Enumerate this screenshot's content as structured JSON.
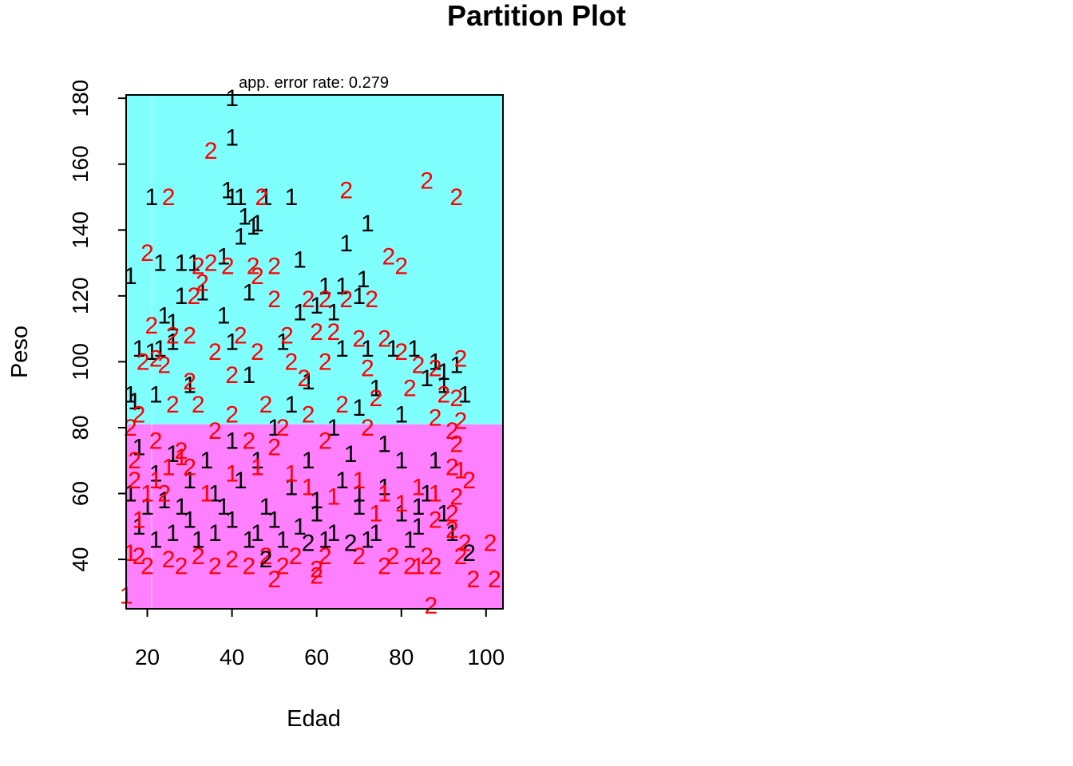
{
  "chart_data": {
    "type": "scatter",
    "title": "Partition Plot",
    "subtitle": "app. error rate: 0.279",
    "xlabel": "Edad",
    "ylabel": "Peso",
    "xlim": [
      15,
      104
    ],
    "ylim": [
      25,
      181
    ],
    "xticks": [
      20,
      40,
      60,
      80,
      100
    ],
    "yticks": [
      40,
      60,
      80,
      100,
      120,
      140,
      160,
      180
    ],
    "grid": false,
    "legend": "none",
    "regions": [
      {
        "class": "1",
        "color": "#80FFFF",
        "x": [
          15,
          104
        ],
        "y": [
          81,
          181
        ],
        "x_extent_for_y_81_to_90": [
          15,
          95
        ]
      },
      {
        "class": "2",
        "color": "#FF80FF",
        "x": [
          15,
          104
        ],
        "y": [
          25,
          81
        ]
      }
    ],
    "point_colors": {
      "correct": "#000000",
      "misclassified": "#FF0000"
    },
    "series": [
      {
        "name": "1",
        "points": [
          [
            40,
            180
          ],
          [
            40,
            168
          ],
          [
            39,
            152
          ],
          [
            40,
            150
          ],
          [
            42,
            150
          ],
          [
            48,
            150
          ],
          [
            54,
            150
          ],
          [
            21,
            150
          ],
          [
            43,
            144
          ],
          [
            45,
            141
          ],
          [
            46,
            142
          ],
          [
            42,
            138
          ],
          [
            72,
            142
          ],
          [
            67,
            136
          ],
          [
            56,
            131
          ],
          [
            71,
            125
          ],
          [
            23,
            130
          ],
          [
            28,
            130
          ],
          [
            31,
            130
          ],
          [
            16,
            126
          ],
          [
            38,
            132
          ],
          [
            62,
            123
          ],
          [
            66,
            123
          ],
          [
            28,
            120
          ],
          [
            33,
            121
          ],
          [
            44,
            121
          ],
          [
            70,
            120
          ],
          [
            24,
            114
          ],
          [
            26,
            112
          ],
          [
            38,
            114
          ],
          [
            56,
            115
          ],
          [
            60,
            117
          ],
          [
            64,
            115
          ],
          [
            23,
            104
          ],
          [
            26,
            106
          ],
          [
            40,
            106
          ],
          [
            52,
            106
          ],
          [
            66,
            104
          ],
          [
            72,
            104
          ],
          [
            78,
            104
          ],
          [
            83,
            104
          ],
          [
            18,
            104
          ],
          [
            21,
            103
          ],
          [
            88,
            100
          ],
          [
            93,
            99
          ],
          [
            90,
            97
          ],
          [
            86,
            95
          ],
          [
            90,
            93
          ],
          [
            95,
            90
          ],
          [
            30,
            93
          ],
          [
            44,
            96
          ],
          [
            58,
            94
          ],
          [
            74,
            92
          ],
          [
            16,
            90
          ],
          [
            17,
            88
          ],
          [
            22,
            90
          ],
          [
            54,
            87
          ],
          [
            70,
            86
          ],
          [
            80,
            84
          ],
          [
            50,
            80
          ],
          [
            64,
            80
          ],
          [
            40,
            76
          ],
          [
            76,
            75
          ],
          [
            18,
            74
          ],
          [
            26,
            72
          ],
          [
            34,
            70
          ],
          [
            46,
            70
          ],
          [
            58,
            70
          ],
          [
            68,
            72
          ],
          [
            80,
            70
          ],
          [
            88,
            70
          ],
          [
            22,
            66
          ],
          [
            30,
            64
          ],
          [
            42,
            64
          ],
          [
            54,
            62
          ],
          [
            66,
            64
          ],
          [
            76,
            62
          ],
          [
            86,
            60
          ],
          [
            16,
            60
          ],
          [
            20,
            56
          ],
          [
            28,
            56
          ],
          [
            38,
            56
          ],
          [
            48,
            56
          ],
          [
            60,
            54
          ],
          [
            70,
            56
          ],
          [
            80,
            54
          ],
          [
            90,
            54
          ],
          [
            18,
            50
          ],
          [
            26,
            48
          ],
          [
            36,
            48
          ],
          [
            46,
            48
          ],
          [
            56,
            50
          ],
          [
            64,
            48
          ],
          [
            74,
            48
          ],
          [
            84,
            50
          ],
          [
            92,
            48
          ],
          [
            22,
            46
          ],
          [
            32,
            46
          ],
          [
            44,
            46
          ],
          [
            52,
            46
          ],
          [
            62,
            46
          ],
          [
            72,
            46
          ],
          [
            82,
            46
          ],
          [
            30,
            52
          ],
          [
            40,
            52
          ],
          [
            50,
            52
          ],
          [
            60,
            58
          ],
          [
            70,
            60
          ],
          [
            36,
            60
          ],
          [
            24,
            58
          ],
          [
            84,
            56
          ]
        ]
      },
      {
        "name": "2",
        "points": [
          [
            35,
            164
          ],
          [
            86,
            155
          ],
          [
            93,
            150
          ],
          [
            67,
            152
          ],
          [
            47,
            150
          ],
          [
            25,
            150
          ],
          [
            20,
            133
          ],
          [
            77,
            132
          ],
          [
            80,
            129
          ],
          [
            32,
            129
          ],
          [
            35,
            130
          ],
          [
            39,
            129
          ],
          [
            45,
            129
          ],
          [
            50,
            129
          ],
          [
            33,
            124
          ],
          [
            46,
            126
          ],
          [
            31,
            120
          ],
          [
            50,
            119
          ],
          [
            58,
            119
          ],
          [
            62,
            119
          ],
          [
            67,
            119
          ],
          [
            73,
            119
          ],
          [
            21,
            111
          ],
          [
            30,
            108
          ],
          [
            26,
            108
          ],
          [
            53,
            108
          ],
          [
            60,
            109
          ],
          [
            64,
            109
          ],
          [
            70,
            107
          ],
          [
            76,
            107
          ],
          [
            42,
            108
          ],
          [
            36,
            103
          ],
          [
            46,
            103
          ],
          [
            80,
            103
          ],
          [
            84,
            99
          ],
          [
            94,
            101
          ],
          [
            88,
            98
          ],
          [
            19,
            100
          ],
          [
            22,
            101
          ],
          [
            24,
            99
          ],
          [
            54,
            100
          ],
          [
            62,
            100
          ],
          [
            72,
            98
          ],
          [
            40,
            96
          ],
          [
            30,
            94
          ],
          [
            57,
            95
          ],
          [
            82,
            92
          ],
          [
            90,
            90
          ],
          [
            93,
            89
          ],
          [
            74,
            89
          ],
          [
            26,
            87
          ],
          [
            32,
            87
          ],
          [
            48,
            87
          ],
          [
            66,
            87
          ],
          [
            18,
            84
          ],
          [
            40,
            84
          ],
          [
            58,
            84
          ],
          [
            88,
            83
          ],
          [
            94,
            82
          ],
          [
            16,
            80
          ],
          [
            36,
            79
          ],
          [
            52,
            80
          ],
          [
            72,
            80
          ],
          [
            92,
            79
          ],
          [
            22,
            76
          ],
          [
            44,
            76
          ],
          [
            62,
            76
          ],
          [
            93,
            75
          ],
          [
            28,
            73
          ],
          [
            50,
            74
          ],
          [
            17,
            70
          ],
          [
            30,
            68
          ],
          [
            92,
            68
          ],
          [
            17,
            64
          ],
          [
            24,
            60
          ],
          [
            96,
            64
          ],
          [
            93,
            59
          ],
          [
            92,
            54
          ],
          [
            88,
            52
          ],
          [
            92,
            49
          ],
          [
            95,
            45
          ],
          [
            101,
            45
          ],
          [
            18,
            41
          ],
          [
            25,
            40
          ],
          [
            32,
            41
          ],
          [
            40,
            40
          ],
          [
            48,
            41
          ],
          [
            55,
            41
          ],
          [
            62,
            41
          ],
          [
            70,
            41
          ],
          [
            78,
            41
          ],
          [
            86,
            41
          ],
          [
            94,
            41
          ],
          [
            20,
            38
          ],
          [
            28,
            38
          ],
          [
            36,
            38
          ],
          [
            44,
            38
          ],
          [
            52,
            38
          ],
          [
            60,
            37
          ],
          [
            76,
            38
          ],
          [
            82,
            38
          ],
          [
            88,
            38
          ],
          [
            50,
            34
          ],
          [
            60,
            35
          ],
          [
            97,
            34
          ],
          [
            102,
            34
          ],
          [
            87,
            26
          ]
        ]
      }
    ],
    "misclassified_points": {
      "1": [
        [
          15,
          29
        ],
        [
          16,
          42
        ],
        [
          18,
          52
        ],
        [
          20,
          60
        ],
        [
          22,
          64
        ],
        [
          25,
          68
        ],
        [
          28,
          71
        ],
        [
          34,
          60
        ],
        [
          40,
          66
        ],
        [
          46,
          68
        ],
        [
          54,
          66
        ],
        [
          58,
          62
        ],
        [
          64,
          59
        ],
        [
          70,
          64
        ],
        [
          76,
          60
        ],
        [
          80,
          57
        ],
        [
          84,
          62
        ],
        [
          88,
          60
        ],
        [
          84,
          38
        ],
        [
          94,
          67
        ],
        [
          74,
          54
        ]
      ],
      "2": [
        [
          48,
          40
        ],
        [
          58,
          45
        ],
        [
          68,
          45
        ],
        [
          96,
          42
        ]
      ]
    }
  }
}
